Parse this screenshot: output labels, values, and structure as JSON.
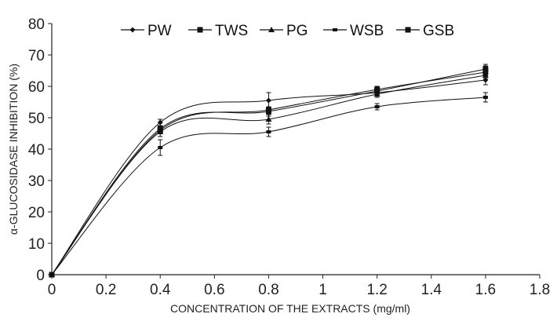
{
  "chart_data": {
    "type": "line",
    "title": "",
    "xlabel": "CONCENTRATION OF THE EXTRACTS (mg/ml)",
    "ylabel": "α-GLUCOSIDASE INHIBITION (%)",
    "xlim": [
      0,
      1.8
    ],
    "ylim": [
      0,
      80
    ],
    "x_ticks": [
      "0",
      "0.2",
      "0.4",
      "0.6",
      "0.8",
      "1",
      "1.2",
      "1.4",
      "1.6",
      "1.8"
    ],
    "y_ticks": [
      "0",
      "10",
      "20",
      "30",
      "40",
      "50",
      "60",
      "70",
      "80"
    ],
    "legend_position": "top",
    "line_color": "#111111",
    "x": [
      0,
      0.4,
      0.8,
      1.2,
      1.6
    ],
    "series": [
      {
        "name": "PW",
        "marker": "diamond",
        "values": [
          0,
          48.5,
          55.5,
          58.0,
          62.0
        ],
        "errors": [
          0,
          1.0,
          2.5,
          1.0,
          1.5
        ]
      },
      {
        "name": "TWS",
        "marker": "square",
        "values": [
          0,
          46.5,
          52.0,
          58.5,
          65.5
        ],
        "errors": [
          0,
          1.0,
          1.5,
          1.0,
          1.5
        ]
      },
      {
        "name": "PG",
        "marker": "triangle",
        "values": [
          0,
          45.5,
          49.5,
          57.5,
          63.5
        ],
        "errors": [
          0,
          1.5,
          1.5,
          1.0,
          1.5
        ]
      },
      {
        "name": "WSB",
        "marker": "dash",
        "values": [
          0,
          40.5,
          45.5,
          53.5,
          56.5
        ],
        "errors": [
          0,
          2.5,
          1.5,
          1.0,
          1.5
        ]
      },
      {
        "name": "GSB",
        "marker": "square",
        "values": [
          0,
          46.0,
          52.5,
          59.0,
          64.5
        ],
        "errors": [
          0,
          1.0,
          1.0,
          1.0,
          2.0
        ]
      }
    ]
  }
}
